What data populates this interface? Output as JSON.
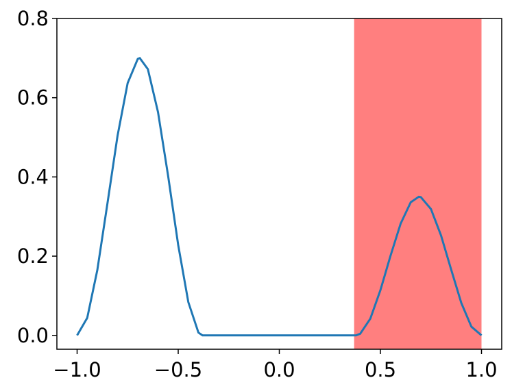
{
  "chart_data": {
    "type": "line",
    "x": [
      -1.0,
      -0.95,
      -0.9,
      -0.85,
      -0.8,
      -0.75,
      -0.7,
      -0.69,
      -0.65,
      -0.6,
      -0.55,
      -0.5,
      -0.45,
      -0.4,
      -0.38,
      0.38,
      0.4,
      0.45,
      0.5,
      0.55,
      0.6,
      0.65,
      0.69,
      0.7,
      0.75,
      0.8,
      0.85,
      0.9,
      0.95,
      1.0
    ],
    "series": [
      {
        "color": "#1f77b4",
        "values": [
          0,
          0.044,
          0.165,
          0.333,
          0.504,
          0.637,
          0.698,
          0.7,
          0.672,
          0.564,
          0.403,
          0.228,
          0.084,
          0.007,
          0,
          0,
          0.004,
          0.042,
          0.114,
          0.201,
          0.282,
          0.336,
          0.35,
          0.349,
          0.319,
          0.252,
          0.166,
          0.082,
          0.022,
          0
        ]
      }
    ],
    "span": {
      "x": [
        0.37,
        1.0
      ],
      "color": "#ff7f7f"
    },
    "xlim": [
      -1.1,
      1.1
    ],
    "xticks": [
      {
        "value": -1.0,
        "label": "−1.0"
      },
      {
        "value": -0.5,
        "label": "−0.5"
      },
      {
        "value": 0.0,
        "label": "0.0"
      },
      {
        "value": 0.5,
        "label": "0.5"
      },
      {
        "value": 1.0,
        "label": "1.0"
      }
    ],
    "ylim": [
      -0.035,
      0.8
    ],
    "yticks": [
      {
        "value": 0.0,
        "label": "0.0"
      },
      0.2,
      0.4,
      0.6,
      0.8
    ]
  }
}
